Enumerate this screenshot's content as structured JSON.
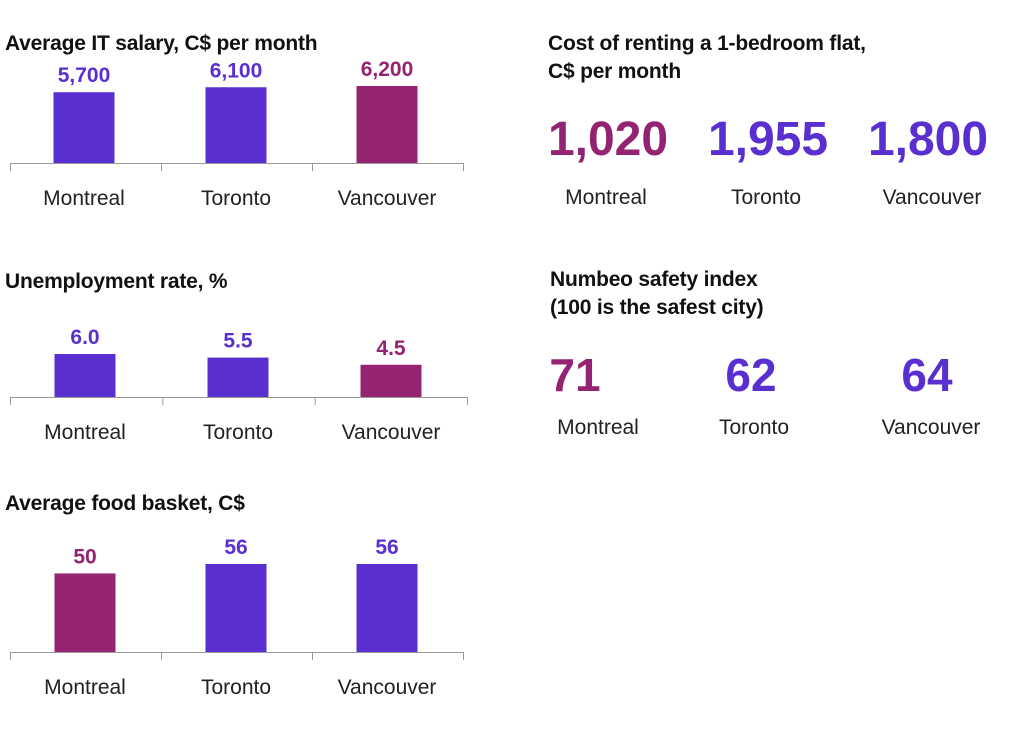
{
  "colors": {
    "purple": "#5a2fd0",
    "plum": "#942471",
    "axis": "#9a9a9a"
  },
  "chart_data": [
    {
      "type": "bar",
      "title": "Average IT salary, C$ per month",
      "categories": [
        "Montreal",
        "Toronto",
        "Vancouver"
      ],
      "values": [
        5700,
        6100,
        6200
      ],
      "value_labels": [
        "5,700",
        "6,100",
        "6,200"
      ],
      "bar_colors": [
        "#5a2fd0",
        "#5a2fd0",
        "#942471"
      ],
      "label_colors": [
        "#5a2fd0",
        "#5a2fd0",
        "#942471"
      ]
    },
    {
      "type": "bar",
      "title": "Unemployment rate, %",
      "categories": [
        "Montreal",
        "Toronto",
        "Vancouver"
      ],
      "values": [
        6.0,
        5.5,
        4.5
      ],
      "value_labels": [
        "6.0",
        "5.5",
        "4.5"
      ],
      "bar_colors": [
        "#5a2fd0",
        "#5a2fd0",
        "#942471"
      ],
      "label_colors": [
        "#5a2fd0",
        "#5a2fd0",
        "#942471"
      ]
    },
    {
      "type": "bar",
      "title": "Average food basket, C$",
      "categories": [
        "Montreal",
        "Toronto",
        "Vancouver"
      ],
      "values": [
        50,
        56,
        56
      ],
      "value_labels": [
        "50",
        "56",
        "56"
      ],
      "bar_colors": [
        "#942471",
        "#5a2fd0",
        "#5a2fd0"
      ],
      "label_colors": [
        "#942471",
        "#5a2fd0",
        "#5a2fd0"
      ]
    },
    {
      "type": "table",
      "title_line1": "Cost of renting a 1-bedroom flat,",
      "title_line2": "C$ per month",
      "categories": [
        "Montreal",
        "Toronto",
        "Vancouver"
      ],
      "values": [
        1020,
        1955,
        1800
      ],
      "value_labels": [
        "1,020",
        "1,955",
        "1,800"
      ],
      "label_colors": [
        "#942471",
        "#5a2fd0",
        "#5a2fd0"
      ]
    },
    {
      "type": "table",
      "title_line1": "Numbeo safety index",
      "title_line2": "(100 is the safest city)",
      "categories": [
        "Montreal",
        "Toronto",
        "Vancouver"
      ],
      "values": [
        71,
        62,
        64
      ],
      "value_labels": [
        "71",
        "62",
        "64"
      ],
      "label_colors": [
        "#942471",
        "#5a2fd0",
        "#5a2fd0"
      ]
    }
  ]
}
